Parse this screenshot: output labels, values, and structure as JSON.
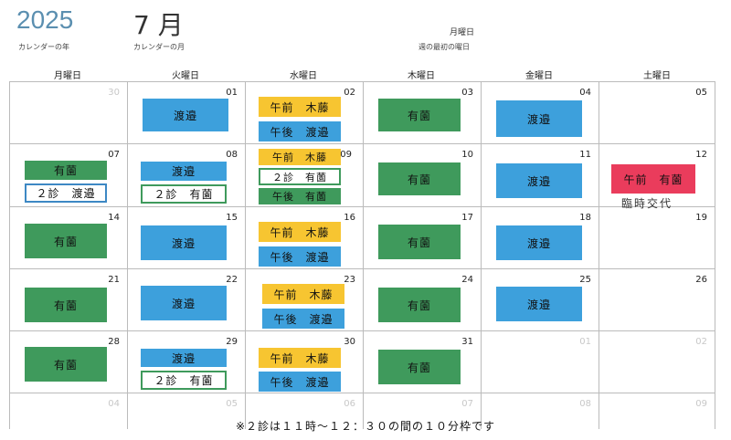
{
  "header": {
    "year": "2025",
    "year_label": "カレンダーの年",
    "month": "7 月",
    "month_label": "カレンダーの月",
    "week_first_day": "月曜日",
    "week_first_day_label": "週の最初の曜日"
  },
  "weekdays": [
    "月曜日",
    "火曜日",
    "水曜日",
    "木曜日",
    "金曜日",
    "土曜日"
  ],
  "day_numbers": [
    [
      "30",
      "01",
      "02",
      "03",
      "04",
      "05"
    ],
    [
      "07",
      "08",
      "09",
      "10",
      "11",
      "12"
    ],
    [
      "14",
      "15",
      "16",
      "17",
      "18",
      "19"
    ],
    [
      "21",
      "22",
      "23",
      "24",
      "25",
      "26"
    ],
    [
      "28",
      "29",
      "30",
      "31",
      "01",
      "02"
    ],
    [
      "04",
      "05",
      "06",
      "07",
      "08",
      "09"
    ]
  ],
  "events": {
    "tue01": "渡邉",
    "wed02_am": "午前　木藤",
    "wed02_pm": "午後　渡邉",
    "thu03": "有薗",
    "fri04": "渡邉",
    "mon07_a": "有薗",
    "mon07_b": "２診　渡邉",
    "tue08_a": "渡邉",
    "tue08_b": "２診　有薗",
    "wed09_am": "午前　木藤",
    "wed09_2": "２診　有薗",
    "wed09_pm": "午後　有薗",
    "thu10": "有薗",
    "fri11": "渡邉",
    "sat12": "午前　有薗",
    "sat12_note": "臨時交代",
    "mon14": "有薗",
    "tue15": "渡邉",
    "wed16_am": "午前　木藤",
    "wed16_pm": "午後　渡邉",
    "thu17": "有薗",
    "fri18": "渡邉",
    "mon21": "有薗",
    "tue22": "渡邉",
    "wed23_am": "午前　木藤",
    "wed23_pm": "午後　渡邉",
    "thu24": "有薗",
    "fri25": "渡邉",
    "mon28": "有薗",
    "tue29_a": "渡邉",
    "tue29_b": "２診　有薗",
    "wed30_am": "午前　木藤",
    "wed30_pm": "午後　渡邉",
    "thu31": "有薗"
  },
  "footnote": "※２診は１１時～１２：３０の間の１０分枠です",
  "colors": {
    "green": "#3f9a5c",
    "blue": "#3da0dc",
    "yellow": "#f7c531",
    "red": "#ea3c5c"
  }
}
